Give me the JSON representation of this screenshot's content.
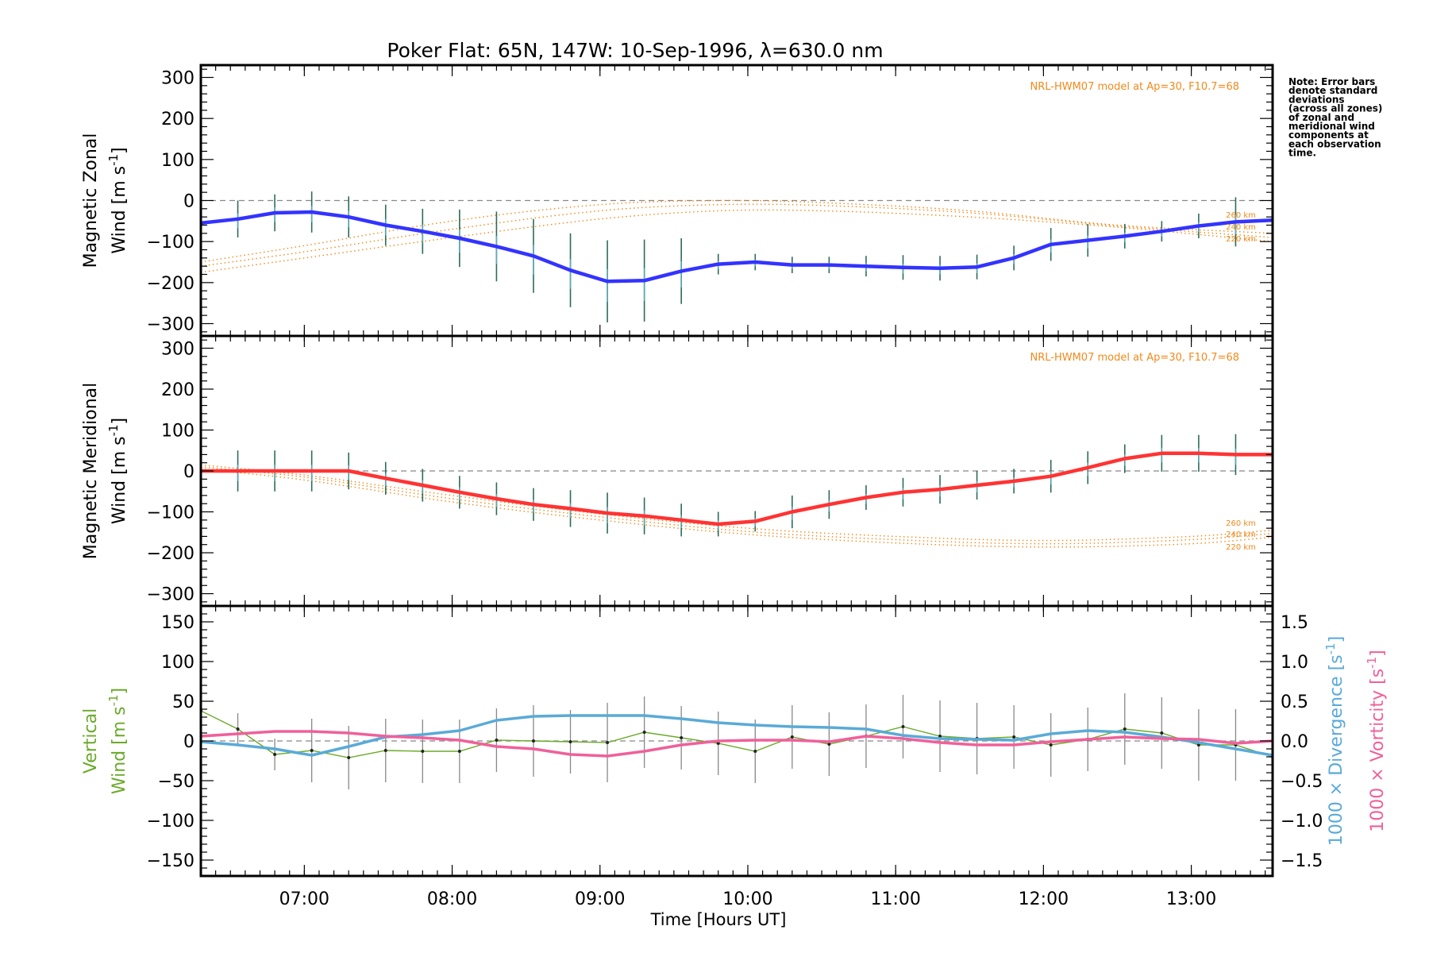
{
  "chart_data": {
    "type": "line",
    "title": "Poker Flat: 65N, 147W: 10-Sep-1996, λ=630.0 nm",
    "xlabel": "Time [Hours UT]",
    "x_tick_labels": [
      "07:00",
      "08:00",
      "09:00",
      "10:00",
      "11:00",
      "12:00",
      "13:00"
    ],
    "x_tick_hours": [
      7,
      8,
      9,
      10,
      11,
      12,
      13
    ],
    "xlim_hours": [
      6.3,
      13.55
    ],
    "note": "Note: Error bars denote standard deviations (across all zones) of zonal and meridional wind components at each observation time.",
    "note_lines": [
      "Note: Error bars",
      "denote standard",
      "deviations",
      "(across all zones)",
      "of zonal and",
      "meridional wind",
      "components at",
      "each observation",
      "time."
    ],
    "colors": {
      "zonal": "#3333ff",
      "meridional": "#ff3333",
      "model": "#f08a1c",
      "vertical": "#6aaa2a",
      "divergence": "#5aaad8",
      "vorticity": "#f0609a",
      "errorbar": "#888888"
    },
    "panels": [
      {
        "id": "zonal",
        "ylabel_line1": "Magnetic Zonal",
        "ylabel_line2": "Wind [m s",
        "ylabel_sup": "-1",
        "ylabel_close": "]",
        "ylim": [
          -330,
          330
        ],
        "yticks": [
          -300,
          -200,
          -100,
          0,
          100,
          200,
          300
        ],
        "ytick_labels": [
          "−300",
          "−200",
          "−100",
          "0",
          "100",
          "200",
          "300"
        ],
        "model_label": "NRL-HWM07 model at Ap=30, F10.7=68",
        "altitude_labels": [
          "260 km",
          "240 km",
          "220 km"
        ],
        "series": {
          "name": "Magnetic Zonal Wind",
          "x": [
            6.3,
            6.55,
            6.8,
            7.05,
            7.3,
            7.55,
            7.8,
            8.05,
            8.3,
            8.55,
            8.8,
            9.05,
            9.3,
            9.55,
            9.8,
            10.05,
            10.3,
            10.55,
            10.8,
            11.05,
            11.3,
            11.55,
            11.8,
            12.05,
            12.3,
            12.55,
            12.8,
            13.05,
            13.3,
            13.55
          ],
          "y": [
            -55,
            -45,
            -30,
            -28,
            -40,
            -60,
            -75,
            -92,
            -112,
            -135,
            -170,
            -197,
            -195,
            -172,
            -155,
            -150,
            -157,
            -157,
            -160,
            -163,
            -165,
            -162,
            -140,
            -107,
            -97,
            -87,
            -75,
            -62,
            -52,
            -48
          ],
          "err": [
            0,
            45,
            45,
            50,
            50,
            50,
            55,
            70,
            85,
            90,
            90,
            100,
            100,
            80,
            25,
            20,
            20,
            20,
            25,
            30,
            30,
            30,
            30,
            40,
            40,
            30,
            25,
            30,
            60,
            0
          ]
        },
        "model": [
          {
            "altitude": "260 km",
            "x": [
              6.3,
              7.0,
              8.0,
              9.0,
              9.8,
              10.5,
              11.5,
              12.5,
              13.55
            ],
            "y": [
              -150,
              -110,
              -50,
              -10,
              0,
              -5,
              -25,
              -60,
              -80
            ]
          },
          {
            "altitude": "240 km",
            "x": [
              6.3,
              7.0,
              8.0,
              9.0,
              9.8,
              10.5,
              11.5,
              12.5,
              13.55
            ],
            "y": [
              -160,
              -125,
              -70,
              -25,
              -10,
              -12,
              -30,
              -62,
              -90
            ]
          },
          {
            "altitude": "220 km",
            "x": [
              6.3,
              7.0,
              8.0,
              9.0,
              9.8,
              10.5,
              11.5,
              12.5,
              13.55
            ],
            "y": [
              -175,
              -140,
              -90,
              -45,
              -25,
              -25,
              -40,
              -65,
              -100
            ]
          }
        ]
      },
      {
        "id": "meridional",
        "ylabel_line1": "Magnetic Meridional",
        "ylabel_line2": "Wind [m s",
        "ylabel_sup": "-1",
        "ylabel_close": "]",
        "ylim": [
          -330,
          330
        ],
        "yticks": [
          -300,
          -200,
          -100,
          0,
          100,
          200,
          300
        ],
        "ytick_labels": [
          "−300",
          "−200",
          "−100",
          "0",
          "100",
          "200",
          "300"
        ],
        "model_label": "NRL-HWM07 model at Ap=30, F10.7=68",
        "altitude_labels": [
          "260 km",
          "240 km",
          "220 km"
        ],
        "series": {
          "name": "Magnetic Meridional Wind",
          "x": [
            6.3,
            6.55,
            6.8,
            7.05,
            7.3,
            7.55,
            7.8,
            8.05,
            8.3,
            8.55,
            8.8,
            9.05,
            9.3,
            9.55,
            9.8,
            10.05,
            10.3,
            10.55,
            10.8,
            11.05,
            11.3,
            11.55,
            11.8,
            12.05,
            12.3,
            12.55,
            12.8,
            13.05,
            13.3,
            13.55
          ],
          "y": [
            0,
            0,
            0,
            0,
            0,
            -18,
            -35,
            -52,
            -68,
            -82,
            -92,
            -103,
            -110,
            -120,
            -130,
            -123,
            -100,
            -82,
            -65,
            -52,
            -45,
            -35,
            -25,
            -13,
            8,
            30,
            43,
            43,
            40,
            40
          ],
          "err": [
            0,
            50,
            50,
            50,
            45,
            40,
            40,
            40,
            40,
            40,
            45,
            50,
            45,
            40,
            30,
            25,
            40,
            35,
            30,
            35,
            35,
            35,
            30,
            40,
            40,
            35,
            45,
            45,
            50,
            0
          ]
        },
        "model": [
          {
            "altitude": "260 km",
            "x": [
              6.3,
              7.0,
              8.0,
              9.0,
              10.0,
              11.0,
              12.0,
              13.0,
              13.55
            ],
            "y": [
              15,
              -10,
              -60,
              -105,
              -140,
              -160,
              -170,
              -160,
              -145
            ]
          },
          {
            "altitude": "240 km",
            "x": [
              6.3,
              7.0,
              8.0,
              9.0,
              10.0,
              11.0,
              12.0,
              13.0,
              13.55
            ],
            "y": [
              10,
              -15,
              -68,
              -112,
              -148,
              -168,
              -178,
              -168,
              -153
            ]
          },
          {
            "altitude": "220 km",
            "x": [
              6.3,
              7.0,
              8.0,
              9.0,
              10.0,
              11.0,
              12.0,
              13.0,
              13.55
            ],
            "y": [
              5,
              -22,
              -76,
              -120,
              -155,
              -176,
              -186,
              -178,
              -162
            ]
          }
        ]
      },
      {
        "id": "vertical",
        "ylabel_line1": "Vertical",
        "ylabel_line2": "Wind [m s",
        "ylabel_sup": "-1",
        "ylabel_close": "]",
        "ylim": [
          -170,
          170
        ],
        "yticks": [
          -150,
          -100,
          -50,
          0,
          50,
          100,
          150
        ],
        "ytick_labels": [
          "−150",
          "−100",
          "−50",
          "0",
          "50",
          "100",
          "150"
        ],
        "y2lim": [
          -1.7,
          1.7
        ],
        "y2ticks": [
          -1.5,
          -1.0,
          -0.5,
          0.0,
          0.5,
          1.0,
          1.5
        ],
        "y2tick_labels": [
          "−1.5",
          "−1.0",
          "−0.5",
          "0.0",
          "0.5",
          "1.0",
          "1.5"
        ],
        "y2label_divergence": "1000 × Divergence [s",
        "y2label_vorticity": "1000 × Vorticity [s",
        "y2label_sup": "-1",
        "y2label_close": "]",
        "vertical_wind": {
          "name": "Vertical Wind",
          "x": [
            6.3,
            6.55,
            6.8,
            7.05,
            7.3,
            7.55,
            7.8,
            8.05,
            8.3,
            8.55,
            8.8,
            9.05,
            9.3,
            9.55,
            9.8,
            10.05,
            10.3,
            10.55,
            10.8,
            11.05,
            11.3,
            11.55,
            11.8,
            12.05,
            12.3,
            12.55,
            12.8,
            13.05,
            13.3,
            13.55
          ],
          "y": [
            38,
            15,
            -17,
            -12,
            -21,
            -12,
            -13,
            -13,
            1,
            0,
            -1,
            -2,
            11,
            4,
            -3,
            -13,
            5,
            -4,
            6,
            18,
            6,
            3,
            5,
            -5,
            2,
            15,
            10,
            -5,
            -5,
            -20
          ],
          "err": [
            0,
            20,
            20,
            40,
            40,
            40,
            40,
            40,
            40,
            45,
            40,
            50,
            45,
            40,
            40,
            40,
            40,
            40,
            40,
            40,
            45,
            45,
            40,
            40,
            40,
            45,
            45,
            45,
            45,
            0
          ]
        },
        "divergence": {
          "name": "1000 x Divergence",
          "x": [
            6.3,
            6.55,
            6.8,
            7.05,
            7.3,
            7.55,
            7.8,
            8.05,
            8.3,
            8.55,
            8.8,
            9.05,
            9.3,
            9.55,
            9.8,
            10.05,
            10.3,
            10.55,
            10.8,
            11.05,
            11.3,
            11.55,
            11.8,
            12.05,
            12.3,
            12.55,
            12.8,
            13.05,
            13.3,
            13.55
          ],
          "y": [
            -0.01,
            -0.05,
            -0.1,
            -0.18,
            -0.07,
            0.05,
            0.08,
            0.13,
            0.26,
            0.31,
            0.32,
            0.32,
            0.32,
            0.28,
            0.23,
            0.2,
            0.18,
            0.17,
            0.15,
            0.07,
            0.03,
            0.02,
            0.01,
            0.09,
            0.13,
            0.11,
            0.05,
            -0.02,
            -0.1,
            -0.18
          ]
        },
        "vorticity": {
          "name": "1000 x Vorticity",
          "x": [
            6.3,
            6.55,
            6.8,
            7.05,
            7.3,
            7.55,
            7.8,
            8.05,
            8.3,
            8.55,
            8.8,
            9.05,
            9.3,
            9.55,
            9.8,
            10.05,
            10.3,
            10.55,
            10.8,
            11.05,
            11.3,
            11.55,
            11.8,
            12.05,
            12.3,
            12.55,
            12.8,
            13.05,
            13.3,
            13.55
          ],
          "y": [
            0.06,
            0.09,
            0.12,
            0.12,
            0.1,
            0.06,
            0.04,
            0.01,
            -0.07,
            -0.1,
            -0.17,
            -0.19,
            -0.13,
            -0.05,
            0.0,
            0.01,
            0.01,
            -0.01,
            0.06,
            0.03,
            -0.02,
            -0.05,
            -0.05,
            -0.01,
            0.02,
            0.05,
            0.03,
            0.02,
            -0.03,
            0.0
          ]
        }
      }
    ]
  }
}
